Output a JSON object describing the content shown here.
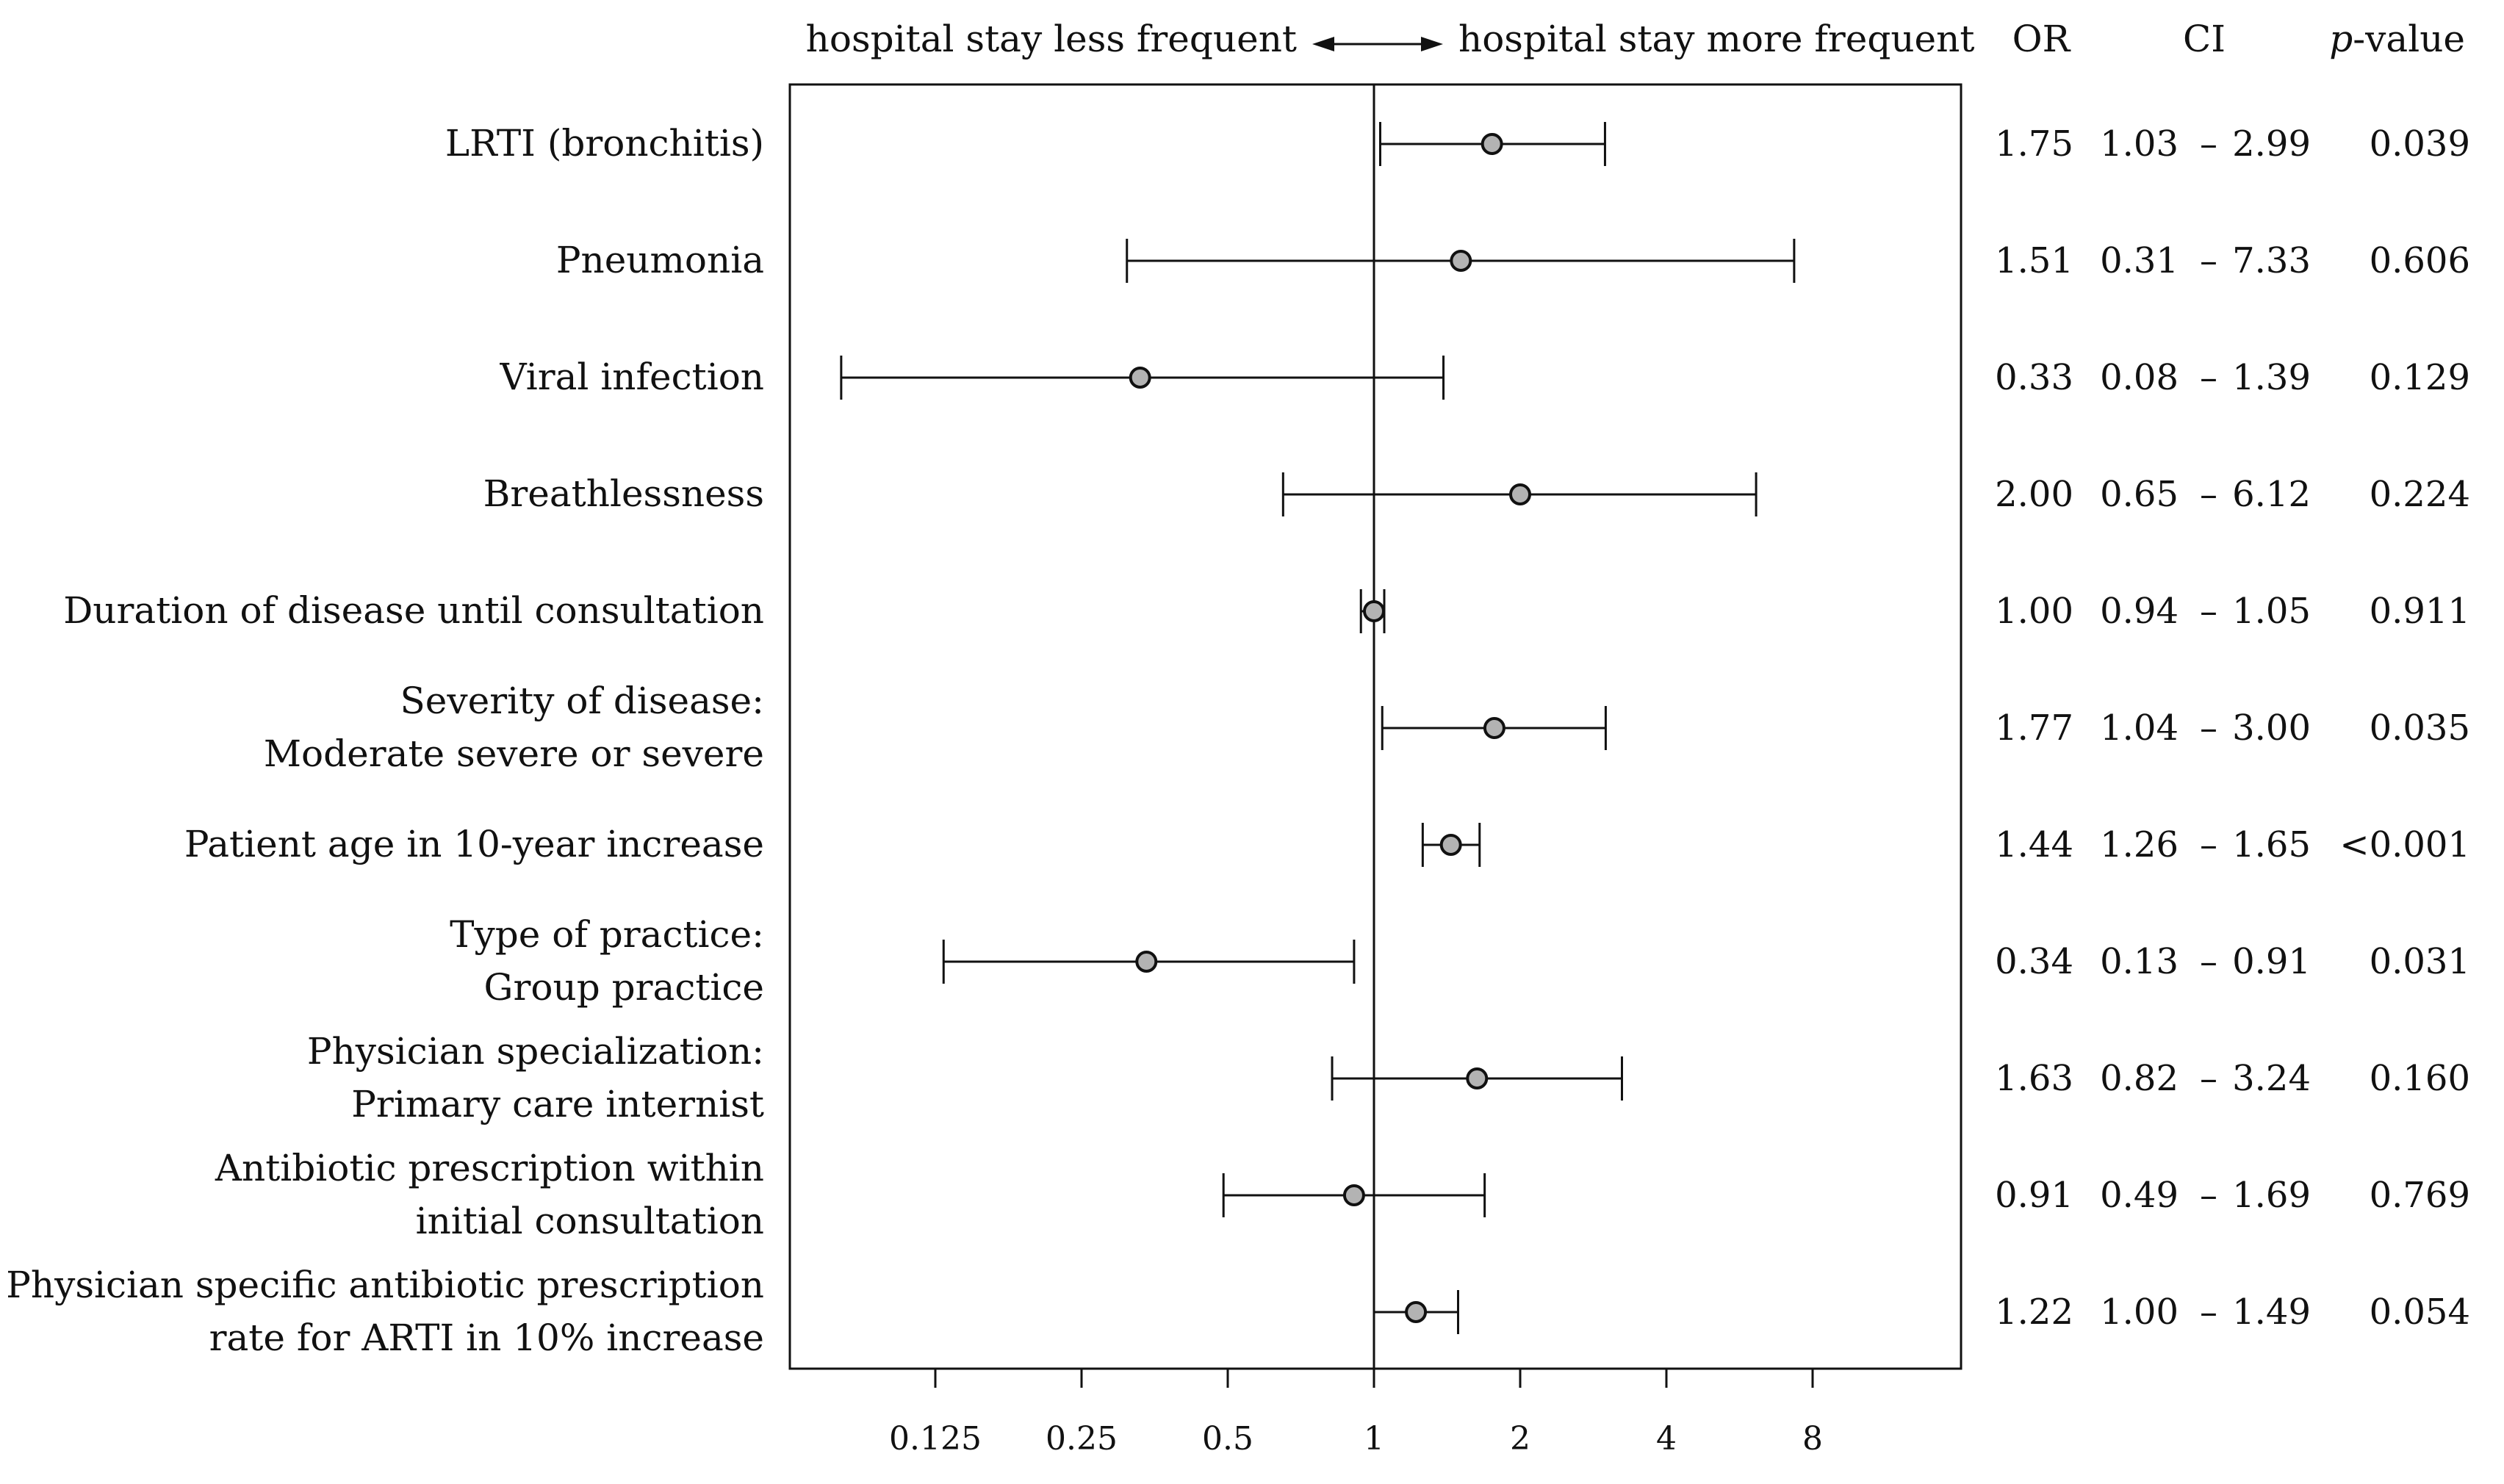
{
  "chart_data": {
    "type": "forest",
    "scale": "log2",
    "reference_value": 1,
    "header": {
      "left_direction": "hospital stay less frequent",
      "right_direction": "hospital stay more frequent",
      "col_or": "OR",
      "col_ci": "CI",
      "col_p_italic": "p",
      "col_p_rest": "-value",
      "ci_separator": "–"
    },
    "x_ticks": [
      {
        "value": 0.125,
        "label": "0.125"
      },
      {
        "value": 0.25,
        "label": "0.25"
      },
      {
        "value": 0.5,
        "label": "0.5"
      },
      {
        "value": 1,
        "label": "1"
      },
      {
        "value": 2,
        "label": "2"
      },
      {
        "value": 4,
        "label": "4"
      },
      {
        "value": 8,
        "label": "8"
      }
    ],
    "rows": [
      {
        "label": [
          "LRTI (bronchitis)"
        ],
        "or": 1.75,
        "lo": 1.03,
        "hi": 2.99,
        "or_text": "1.75",
        "lo_text": "1.03",
        "hi_text": "2.99",
        "p_text": "0.039"
      },
      {
        "label": [
          "Pneumonia"
        ],
        "or": 1.51,
        "lo": 0.31,
        "hi": 7.33,
        "or_text": "1.51",
        "lo_text": "0.31",
        "hi_text": "7.33",
        "p_text": "0.606"
      },
      {
        "label": [
          "Viral infection"
        ],
        "or": 0.33,
        "lo": 0.08,
        "hi": 1.39,
        "or_text": "0.33",
        "lo_text": "0.08",
        "hi_text": "1.39",
        "p_text": "0.129"
      },
      {
        "label": [
          "Breathlessness"
        ],
        "or": 2.0,
        "lo": 0.65,
        "hi": 6.12,
        "or_text": "2.00",
        "lo_text": "0.65",
        "hi_text": "6.12",
        "p_text": "0.224"
      },
      {
        "label": [
          "Duration of disease until consultation"
        ],
        "or": 1.0,
        "lo": 0.94,
        "hi": 1.05,
        "or_text": "1.00",
        "lo_text": "0.94",
        "hi_text": "1.05",
        "p_text": "0.911"
      },
      {
        "label": [
          "Severity of disease:",
          "Moderate severe or severe"
        ],
        "or": 1.77,
        "lo": 1.04,
        "hi": 3.0,
        "or_text": "1.77",
        "lo_text": "1.04",
        "hi_text": "3.00",
        "p_text": "0.035"
      },
      {
        "label": [
          "Patient age in 10-year increase"
        ],
        "or": 1.44,
        "lo": 1.26,
        "hi": 1.65,
        "or_text": "1.44",
        "lo_text": "1.26",
        "hi_text": "1.65",
        "p_text": "<0.001"
      },
      {
        "label": [
          "Type of practice:",
          "Group practice"
        ],
        "or": 0.34,
        "lo": 0.13,
        "hi": 0.91,
        "or_text": "0.34",
        "lo_text": "0.13",
        "hi_text": "0.91",
        "p_text": "0.031"
      },
      {
        "label": [
          "Physician specialization:",
          "Primary care internist"
        ],
        "or": 1.63,
        "lo": 0.82,
        "hi": 3.24,
        "or_text": "1.63",
        "lo_text": "0.82",
        "hi_text": "3.24",
        "p_text": "0.160"
      },
      {
        "label": [
          "Antibiotic prescription within",
          "initial consultation"
        ],
        "or": 0.91,
        "lo": 0.49,
        "hi": 1.69,
        "or_text": "0.91",
        "lo_text": "0.49",
        "hi_text": "1.69",
        "p_text": "0.769"
      },
      {
        "label": [
          "Physician specific antibiotic prescription",
          "rate for ARTI in 10% increase"
        ],
        "or": 1.22,
        "lo": 1.0,
        "hi": 1.49,
        "or_text": "1.22",
        "lo_text": "1.00",
        "hi_text": "1.49",
        "p_text": "0.054"
      }
    ]
  },
  "colors": {
    "marker_fill": "#b3b3b3",
    "line": "#111111",
    "background": "#ffffff"
  }
}
